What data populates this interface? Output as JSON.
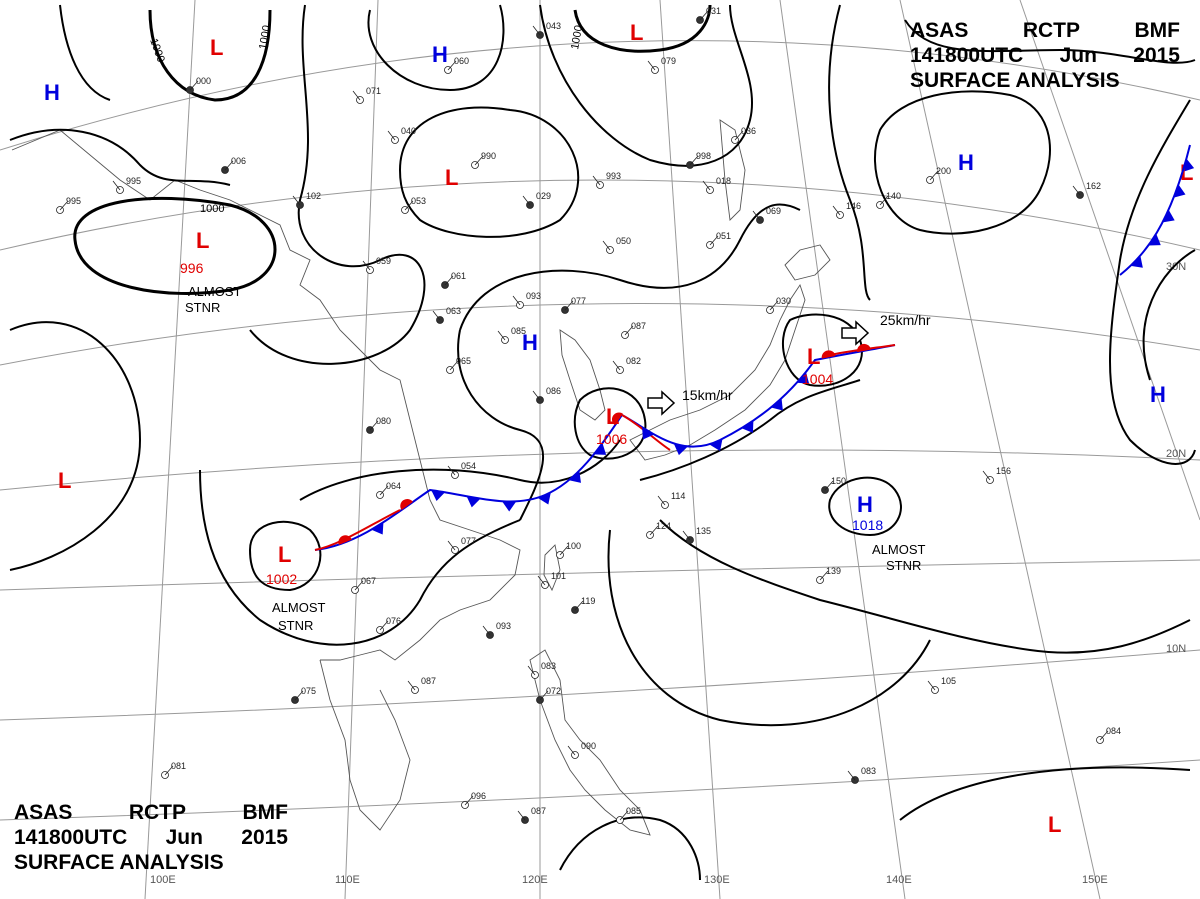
{
  "header": {
    "line1": [
      "ASAS",
      "RCTP",
      "BMF"
    ],
    "line2": [
      "141800UTC",
      "Jun",
      "2015"
    ],
    "line3": "SURFACE ANALYSIS"
  },
  "colors": {
    "low": "#e00000",
    "high": "#0000dd",
    "warm_front": "#e00000",
    "cold_front": "#0000dd",
    "isobar": "#000000",
    "grid": "#999999",
    "coast": "#555555"
  },
  "grid_labels": {
    "longitude": [
      "110E",
      "120E",
      "130E",
      "140E",
      "150E"
    ],
    "latitude": [
      "30N",
      "20N",
      "10N"
    ],
    "edge_lon": "100E"
  },
  "isobar_labels": [
    "1000",
    "1000",
    "1000",
    "1000"
  ],
  "lows": [
    {
      "id": "low-a",
      "symbol": "L"
    },
    {
      "id": "low-b",
      "symbol": "L"
    },
    {
      "id": "low-c",
      "symbol": "L"
    },
    {
      "id": "low-d",
      "symbol": "L",
      "pressure": "996",
      "note": [
        "ALMOST",
        "STNR"
      ]
    },
    {
      "id": "low-e",
      "symbol": "L",
      "pressure": "1002",
      "note": [
        "ALMOST",
        "STNR"
      ]
    },
    {
      "id": "low-f",
      "symbol": "L",
      "pressure": "1006"
    },
    {
      "id": "low-g",
      "symbol": "L",
      "pressure": "1004"
    },
    {
      "id": "low-h",
      "symbol": "L"
    },
    {
      "id": "low-i",
      "symbol": "L"
    },
    {
      "id": "low-j",
      "symbol": "L"
    }
  ],
  "highs": [
    {
      "id": "high-a",
      "symbol": "H"
    },
    {
      "id": "high-b",
      "symbol": "H"
    },
    {
      "id": "high-c",
      "symbol": "H"
    },
    {
      "id": "high-d",
      "symbol": "H"
    },
    {
      "id": "high-e",
      "symbol": "H"
    },
    {
      "id": "high-f",
      "symbol": "H",
      "pressure": "1018",
      "note": [
        "ALMOST",
        "STNR"
      ]
    }
  ],
  "motion": [
    {
      "id": "motion-low-f",
      "speed": "15km/hr"
    },
    {
      "id": "motion-low-g",
      "speed": "25km/hr"
    }
  ],
  "stations": [
    "043",
    "060",
    "071",
    "006",
    "995",
    "995",
    "102",
    "990",
    "993",
    "998",
    "018",
    "036",
    "029",
    "053",
    "059",
    "061",
    "050",
    "051",
    "069",
    "030",
    "093",
    "077",
    "085",
    "087",
    "063",
    "065",
    "082",
    "080",
    "054",
    "064",
    "086",
    "100",
    "101",
    "119",
    "077",
    "067",
    "093",
    "076",
    "087",
    "075",
    "114",
    "124",
    "135",
    "139",
    "156",
    "150",
    "105",
    "084",
    "083",
    "081",
    "083",
    "072",
    "090",
    "096",
    "087",
    "085",
    "040",
    "000",
    "146",
    "140",
    "162",
    "200",
    "079",
    "031"
  ]
}
